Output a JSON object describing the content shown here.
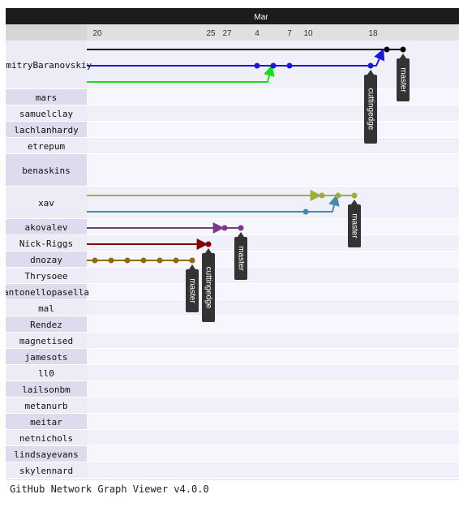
{
  "header": {
    "month_label": "Mar",
    "day_labels": [
      "20",
      "25",
      "27",
      "4",
      "7",
      "10",
      "18"
    ]
  },
  "users": [
    "dmitryBaranovskiy",
    "mars",
    "samuelclay",
    "lachlanhardy",
    "etrepum",
    "benaskins",
    "xav",
    "akovalev",
    "Nick-Riggs",
    "dnozay",
    "Thrysoee",
    "antonellopasella",
    "mal",
    "Rendez",
    "magnetised",
    "jamesots",
    "ll0",
    "lailsonbm",
    "metanurb",
    "meitar",
    "netnichols",
    "lindsayevans",
    "skylennard"
  ],
  "branch_tags": [
    {
      "label": "cuttingedge",
      "user": "dmitryBaranovskiy",
      "day": "18"
    },
    {
      "label": "master",
      "user": "dmitryBaranovskiy",
      "day": "18+2"
    },
    {
      "label": "master",
      "user": "xav",
      "day": "18"
    },
    {
      "label": "master",
      "user": "akovalev",
      "day": "25+2"
    },
    {
      "label": "master",
      "user": "dnozay",
      "day": "25-1"
    },
    {
      "label": "cuttingedge",
      "user": "Nick-Riggs",
      "day": "25"
    }
  ],
  "colors": {
    "black": "#000000",
    "blue": "#1a1ad6",
    "green": "#1adc1a",
    "olive": "#9eae3a",
    "teal": "#4a8aa6",
    "purple": "#7a3a86",
    "maroon": "#800000",
    "brown": "#8a6c14",
    "header_bg": "#1c1c1c",
    "subheader_bg": "#e0e0e0",
    "label_bg": "#e4e4f2",
    "row_bg": "#f2f2fc",
    "tag_bg": "#333333"
  },
  "footer": {
    "text": "GitHub Network Graph Viewer v4.0.0"
  }
}
